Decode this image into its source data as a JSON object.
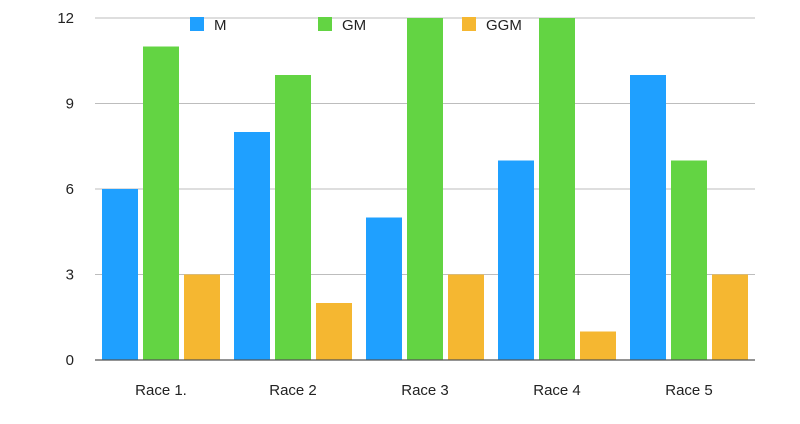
{
  "chart_data": {
    "type": "bar",
    "categories": [
      "Race 1.",
      "Race 2",
      "Race 3",
      "Race 4",
      "Race 5"
    ],
    "series": [
      {
        "name": "M",
        "color": "#1fa0ff",
        "values": [
          6,
          8,
          5,
          7,
          10
        ]
      },
      {
        "name": "GM",
        "color": "#63d443",
        "values": [
          11,
          10,
          12,
          12,
          7
        ]
      },
      {
        "name": "GGM",
        "color": "#f5b731",
        "values": [
          3,
          2,
          3,
          1,
          3
        ]
      }
    ],
    "title": "",
    "xlabel": "",
    "ylabel": "",
    "ylim": [
      0,
      12
    ],
    "yticks": [
      "0",
      "3",
      "6",
      "9",
      "12"
    ],
    "grid": true,
    "legend_position": "top"
  }
}
